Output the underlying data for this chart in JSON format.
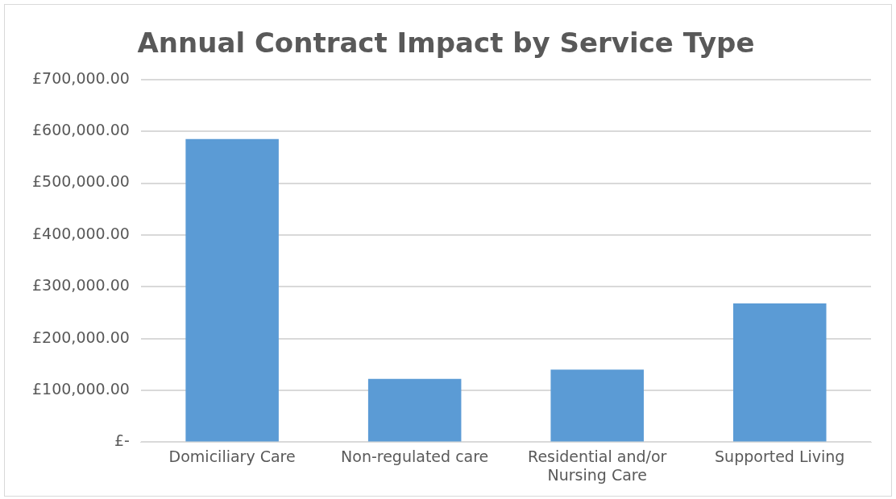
{
  "chart_data": {
    "type": "bar",
    "title": "Annual Contract Impact by Service Type",
    "categories": [
      "Domiciliary Care",
      "Non-regulated care",
      "Residential and/or Nursing Care",
      "Supported Living"
    ],
    "values": [
      585000,
      122000,
      140000,
      268000
    ],
    "color": "#5b9bd5",
    "ylim": [
      0,
      700000
    ],
    "yticks": [
      {
        "value": 0,
        "label": "£-"
      },
      {
        "value": 100000,
        "label": "£100,000.00"
      },
      {
        "value": 200000,
        "label": "£200,000.00"
      },
      {
        "value": 300000,
        "label": "£300,000.00"
      },
      {
        "value": 400000,
        "label": "£400,000.00"
      },
      {
        "value": 500000,
        "label": "£500,000.00"
      },
      {
        "value": 600000,
        "label": "£600,000.00"
      },
      {
        "value": 700000,
        "label": "£700,000.00"
      }
    ],
    "grid": "y"
  }
}
